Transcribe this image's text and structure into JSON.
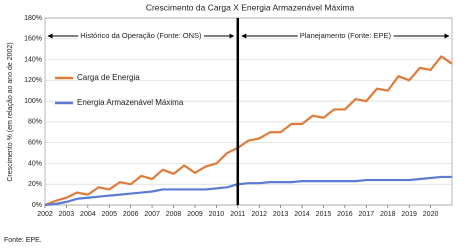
{
  "chart_data": {
    "type": "line",
    "title": "Crescimento da Carga X Energia Armazenável Máxima",
    "y_label": "Crescimento % (em relação ao ano de 2002)",
    "footer": "Fonte: EPE.",
    "annotations": [
      "Histórico da Operação (Fonte: ONS)",
      "Planejamento (Fonte: EPE)"
    ],
    "divider_x": 2011,
    "legend": "upper left",
    "grid": true,
    "x": [
      2002,
      2002.5,
      2003,
      2003.5,
      2004,
      2004.5,
      2005,
      2005.5,
      2006,
      2006.5,
      2007,
      2007.5,
      2008,
      2008.5,
      2009,
      2009.5,
      2010,
      2010.5,
      2011,
      2011.5,
      2012,
      2012.5,
      2013,
      2013.5,
      2014,
      2014.5,
      2015,
      2015.5,
      2016,
      2016.5,
      2017,
      2017.5,
      2018,
      2018.5,
      2019,
      2019.5,
      2020,
      2020.5,
      2021
    ],
    "series": [
      {
        "name": "Carga de Energia",
        "color": "#e07b39",
        "values": [
          0,
          4,
          7,
          12,
          10,
          17,
          15,
          22,
          20,
          28,
          25,
          34,
          30,
          38,
          31,
          37,
          40,
          50,
          55,
          62,
          64,
          70,
          70,
          78,
          78,
          86,
          84,
          92,
          92,
          102,
          100,
          112,
          110,
          124,
          120,
          132,
          130,
          143,
          136
        ]
      },
      {
        "name": "Energia Armazenável Máxima",
        "color": "#5b7bd5",
        "values": [
          0,
          1,
          3,
          6,
          7,
          8,
          9,
          10,
          11,
          12,
          13,
          15,
          15,
          15,
          15,
          15,
          16,
          17,
          20,
          21,
          21,
          22,
          22,
          22,
          23,
          23,
          23,
          23,
          23,
          23,
          24,
          24,
          24,
          24,
          24,
          25,
          26,
          27,
          27
        ]
      }
    ],
    "xlim": [
      2002,
      2021
    ],
    "xticks": [
      2002,
      2003,
      2004,
      2005,
      2006,
      2007,
      2008,
      2009,
      2010,
      2011,
      2012,
      2013,
      2014,
      2015,
      2016,
      2017,
      2018,
      2019,
      2020
    ],
    "ylim": [
      0,
      180
    ],
    "yticks": [
      {
        "value": 0,
        "label": "0%"
      },
      {
        "value": 20,
        "label": "20%"
      },
      {
        "value": 40,
        "label": "40%"
      },
      {
        "value": 60,
        "label": "60%"
      },
      {
        "value": 80,
        "label": "80%"
      },
      {
        "value": 100,
        "label": "100%"
      },
      {
        "value": 120,
        "label": "120%"
      },
      {
        "value": 140,
        "label": "140%"
      },
      {
        "value": 160,
        "label": "160%"
      },
      {
        "value": 180,
        "label": "180%"
      }
    ]
  }
}
